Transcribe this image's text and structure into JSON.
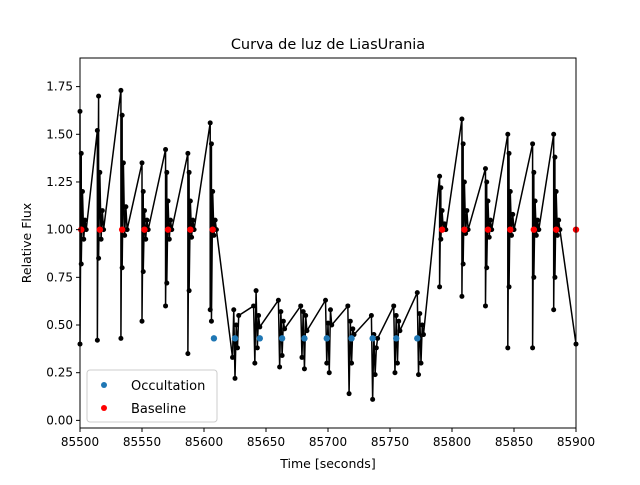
{
  "chart_data": {
    "type": "line",
    "title": "Curva de luz de LiasUrania",
    "xlabel": "Time [seconds]",
    "ylabel": "Relative Flux",
    "xlim": [
      85500,
      85900
    ],
    "ylim": [
      -0.04,
      1.9
    ],
    "xticks": [
      85500,
      85550,
      85600,
      85650,
      85700,
      85750,
      85800,
      85850,
      85900
    ],
    "xtick_labels": [
      "85500",
      "85550",
      "85600",
      "85650",
      "85700",
      "85750",
      "85800",
      "85850",
      "85900"
    ],
    "yticks": [
      0.0,
      0.25,
      0.5,
      0.75,
      1.0,
      1.25,
      1.5,
      1.75
    ],
    "ytick_labels": [
      "0.00",
      "0.25",
      "0.50",
      "0.75",
      "1.00",
      "1.25",
      "1.50",
      "1.75"
    ],
    "legend_position": "lower-left",
    "grid": false,
    "colors": {
      "flux": "#000000",
      "occultation": "#1f77b4",
      "baseline": "#ff0000"
    },
    "series": [
      {
        "key": "flux",
        "style": "line-markers",
        "x": [
          85500,
          85500,
          85501,
          85501,
          85502,
          85503,
          85504,
          85505,
          85514,
          85514,
          85515,
          85515,
          85516,
          85517,
          85518,
          85519,
          85533,
          85533,
          85534,
          85534,
          85535,
          85536,
          85537,
          85538,
          85550,
          85550,
          85551,
          85551,
          85552,
          85553,
          85554,
          85555,
          85569,
          85569,
          85570,
          85570,
          85571,
          85572,
          85573,
          85574,
          85587,
          85587,
          85588,
          85588,
          85589,
          85590,
          85591,
          85592,
          85605,
          85605,
          85606,
          85606,
          85607,
          85608,
          85609,
          85610,
          85623,
          85624,
          85625,
          85626,
          85627,
          85628,
          85640,
          85641,
          85642,
          85643,
          85644,
          85645,
          85660,
          85661,
          85662,
          85663,
          85664,
          85665,
          85678,
          85679,
          85680,
          85681,
          85682,
          85683,
          85698,
          85699,
          85700,
          85701,
          85702,
          85703,
          85716,
          85717,
          85718,
          85719,
          85720,
          85721,
          85735,
          85736,
          85737,
          85738,
          85739,
          85740,
          85753,
          85754,
          85755,
          85756,
          85757,
          85758,
          85772,
          85773,
          85774,
          85775,
          85776,
          85777,
          85790,
          85790,
          85791,
          85791,
          85792,
          85793,
          85794,
          85795,
          85808,
          85808,
          85809,
          85809,
          85810,
          85811,
          85812,
          85813,
          85827,
          85827,
          85828,
          85828,
          85829,
          85830,
          85831,
          85832,
          85845,
          85845,
          85846,
          85846,
          85847,
          85848,
          85849,
          85850,
          85865,
          85865,
          85866,
          85866,
          85867,
          85868,
          85869,
          85870,
          85882,
          85882,
          85883,
          85883,
          85884,
          85885,
          85886,
          85887,
          85900
        ],
        "y": [
          1.62,
          0.4,
          1.4,
          0.82,
          1.2,
          0.95,
          1.05,
          1.0,
          1.52,
          0.42,
          1.7,
          0.85,
          1.3,
          0.95,
          1.1,
          1.0,
          1.73,
          0.43,
          1.6,
          0.8,
          1.35,
          0.97,
          1.12,
          1.0,
          1.35,
          0.52,
          1.2,
          0.78,
          1.1,
          0.95,
          1.05,
          1.0,
          1.42,
          0.6,
          1.3,
          0.72,
          1.15,
          0.95,
          1.05,
          1.0,
          1.4,
          0.35,
          1.3,
          0.68,
          1.15,
          0.96,
          1.05,
          1.0,
          1.56,
          0.58,
          1.45,
          0.52,
          1.2,
          0.97,
          1.05,
          1.0,
          0.33,
          0.58,
          0.22,
          0.5,
          0.38,
          0.55,
          0.6,
          0.3,
          0.68,
          0.38,
          0.55,
          0.49,
          0.63,
          0.28,
          0.57,
          0.34,
          0.52,
          0.48,
          0.6,
          0.33,
          0.57,
          0.27,
          0.55,
          0.47,
          0.63,
          0.3,
          0.51,
          0.25,
          0.58,
          0.5,
          0.6,
          0.14,
          0.52,
          0.3,
          0.48,
          0.45,
          0.55,
          0.11,
          0.45,
          0.24,
          0.38,
          0.43,
          0.6,
          0.25,
          0.55,
          0.3,
          0.52,
          0.47,
          0.67,
          0.24,
          0.56,
          0.3,
          0.5,
          0.45,
          1.28,
          0.7,
          1.22,
          0.95,
          1.1,
          1.0,
          1.03,
          1.0,
          1.58,
          0.65,
          1.45,
          0.82,
          1.25,
          0.98,
          1.1,
          1.0,
          1.32,
          0.6,
          1.25,
          0.8,
          1.15,
          0.96,
          1.05,
          1.0,
          1.5,
          0.38,
          1.4,
          0.7,
          1.2,
          0.97,
          1.08,
          1.0,
          1.45,
          0.38,
          1.3,
          0.75,
          1.15,
          0.97,
          1.05,
          1.0,
          1.5,
          0.58,
          1.38,
          0.75,
          1.2,
          0.97,
          1.05,
          1.0,
          0.4
        ]
      },
      {
        "key": "occultation",
        "name": "Occultation",
        "style": "markers",
        "x": [
          85608,
          85625,
          85645,
          85663,
          85681,
          85699,
          85719,
          85736,
          85755,
          85772
        ],
        "y": [
          0.43,
          0.43,
          0.43,
          0.43,
          0.43,
          0.43,
          0.43,
          0.43,
          0.43,
          0.43
        ]
      },
      {
        "key": "baseline",
        "name": "Baseline",
        "style": "markers",
        "x": [
          85501,
          85516,
          85534,
          85552,
          85571,
          85589,
          85607,
          85792,
          85810,
          85829,
          85847,
          85866,
          85884,
          85900
        ],
        "y": [
          1.0,
          1.0,
          1.0,
          1.0,
          1.0,
          1.0,
          1.0,
          1.0,
          1.0,
          1.0,
          1.0,
          1.0,
          1.0,
          1.0
        ]
      }
    ]
  }
}
